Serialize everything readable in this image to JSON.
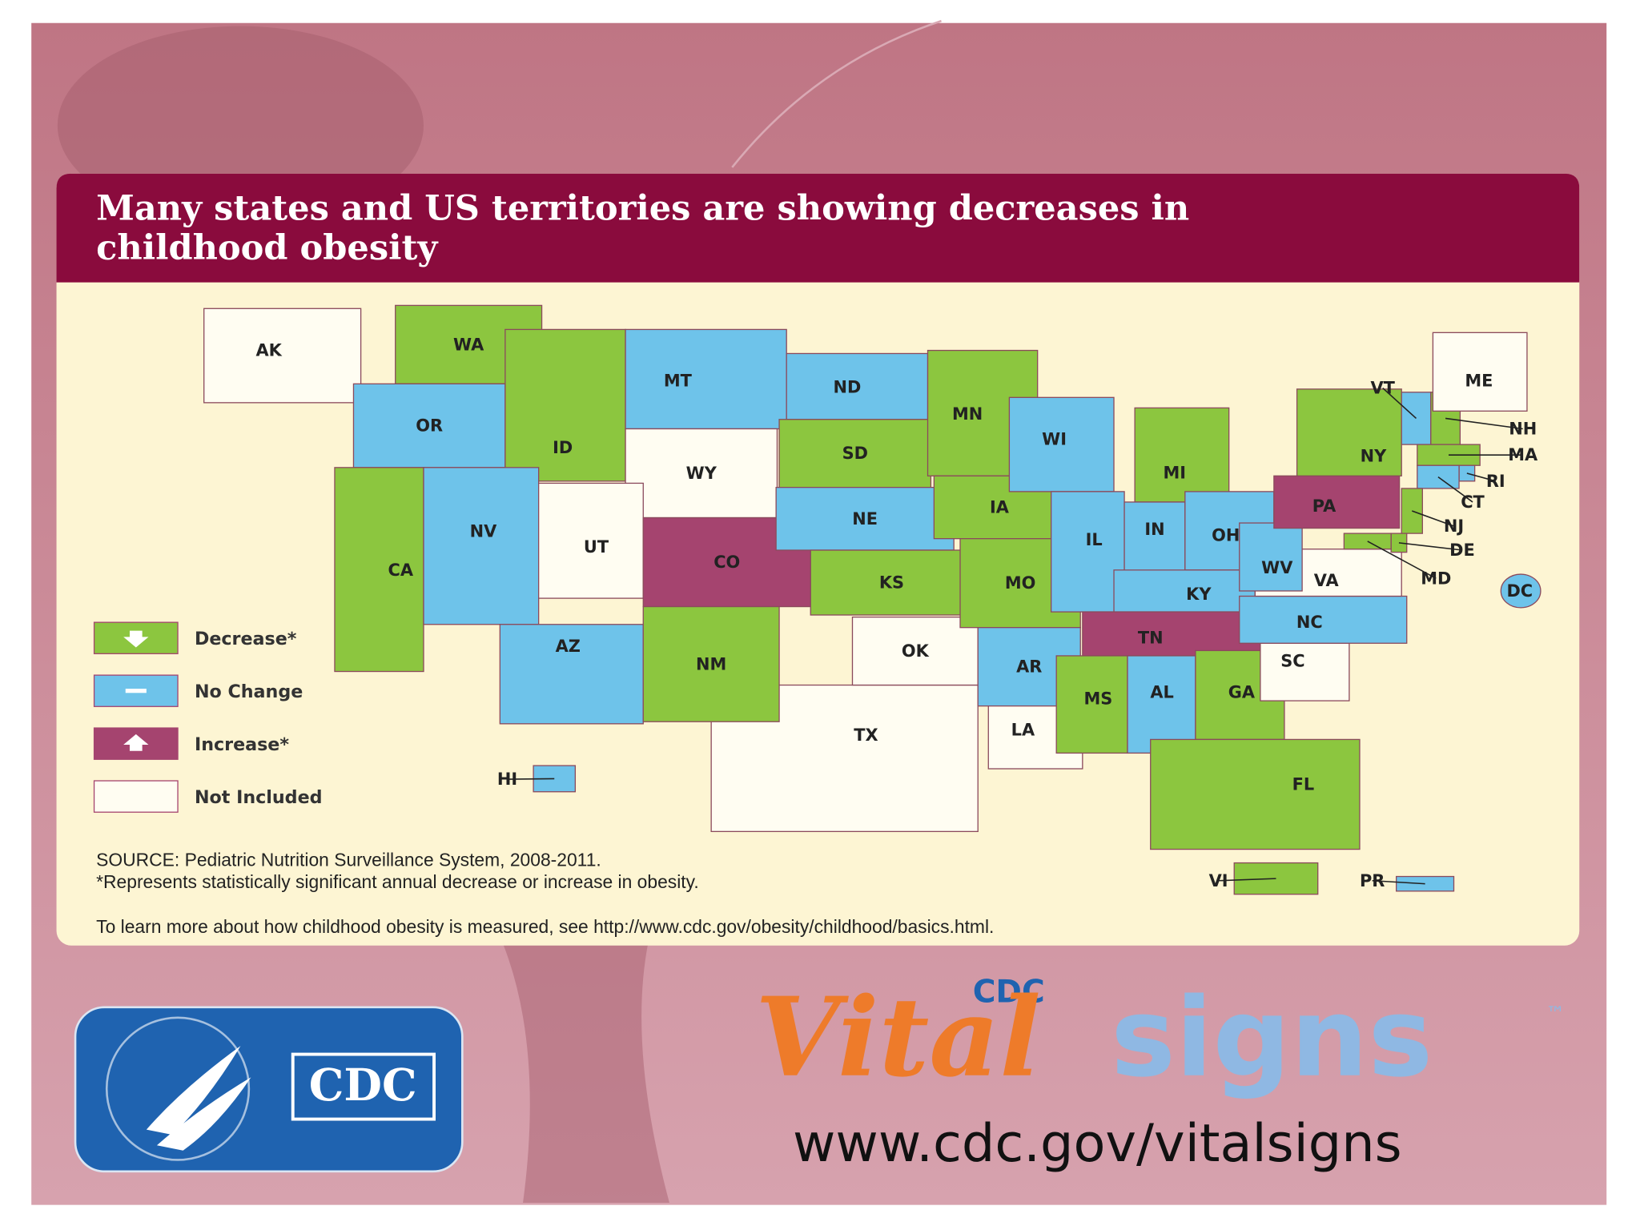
{
  "header": {
    "title_lines": [
      "Many states and US territories are showing decreases in",
      "childhood obesity"
    ]
  },
  "legend": [
    {
      "label": "Decrease*",
      "color": "#8cc63f"
    },
    {
      "label": "No Change",
      "color": "#6ec3ea"
    },
    {
      "label": "Increase*",
      "color": "#a5446f"
    },
    {
      "label": "Not Included",
      "color": "#fffdf2"
    }
  ],
  "states": [
    {
      "label": "AK",
      "color": "#fffdf2"
    },
    {
      "label": "WA",
      "color": "#8cc63f"
    },
    {
      "label": "OR",
      "color": "#6ec3ea"
    },
    {
      "label": "CA",
      "color": "#8cc63f"
    },
    {
      "label": "ID",
      "color": "#8cc63f"
    },
    {
      "label": "NV",
      "color": "#6ec3ea"
    },
    {
      "label": "MT",
      "color": "#6ec3ea"
    },
    {
      "label": "WY",
      "color": "#fffdf2"
    },
    {
      "label": "UT",
      "color": "#fffdf2"
    },
    {
      "label": "AZ",
      "color": "#6ec3ea"
    },
    {
      "label": "CO",
      "color": "#a5446f"
    },
    {
      "label": "TX",
      "color": "#fffdf2"
    },
    {
      "label": "NM",
      "color": "#8cc63f"
    },
    {
      "label": "ND",
      "color": "#6ec3ea"
    },
    {
      "label": "SD",
      "color": "#8cc63f"
    },
    {
      "label": "NE",
      "color": "#6ec3ea"
    },
    {
      "label": "KS",
      "color": "#8cc63f"
    },
    {
      "label": "OK",
      "color": "#fffdf2"
    },
    {
      "label": "MN",
      "color": "#8cc63f"
    },
    {
      "label": "IA",
      "color": "#8cc63f"
    },
    {
      "label": "MO",
      "color": "#8cc63f"
    },
    {
      "label": "AR",
      "color": "#6ec3ea"
    },
    {
      "label": "LA",
      "color": "#fffdf2"
    },
    {
      "label": "WI",
      "color": "#6ec3ea"
    },
    {
      "label": "IL",
      "color": "#6ec3ea"
    },
    {
      "label": "MI",
      "color": "#8cc63f"
    },
    {
      "label": "IN",
      "color": "#6ec3ea"
    },
    {
      "label": "OH",
      "color": "#6ec3ea"
    },
    {
      "label": "KY",
      "color": "#6ec3ea"
    },
    {
      "label": "TN",
      "color": "#a5446f"
    },
    {
      "label": "MS",
      "color": "#8cc63f"
    },
    {
      "label": "AL",
      "color": "#6ec3ea"
    },
    {
      "label": "GA",
      "color": "#8cc63f"
    },
    {
      "label": "FL",
      "color": "#8cc63f"
    },
    {
      "label": "SC",
      "color": "#fffdf2"
    },
    {
      "label": "NC",
      "color": "#6ec3ea"
    },
    {
      "label": "VA",
      "color": "#fffdf2"
    },
    {
      "label": "WV",
      "color": "#6ec3ea"
    },
    {
      "label": "PA",
      "color": "#a5446f"
    },
    {
      "label": "NY",
      "color": "#8cc63f"
    },
    {
      "label": "VT",
      "color": "#6ec3ea"
    },
    {
      "label": "NH",
      "color": "#8cc63f"
    },
    {
      "label": "ME",
      "color": "#fffdf2"
    },
    {
      "label": "MA",
      "color": "#8cc63f"
    },
    {
      "label": "RI",
      "color": "#6ec3ea"
    },
    {
      "label": "CT",
      "color": "#6ec3ea"
    },
    {
      "label": "NJ",
      "color": "#8cc63f"
    },
    {
      "label": "DE",
      "color": "#8cc63f"
    },
    {
      "label": "MD",
      "color": "#8cc63f"
    },
    {
      "label": "DC",
      "color": "#6ec3ea"
    },
    {
      "label": "HI",
      "color": "#6ec3ea"
    },
    {
      "label": "VI",
      "color": "#8cc63f"
    },
    {
      "label": "PR",
      "color": "#6ec3ea"
    }
  ],
  "source": "SOURCE: Pediatric Nutrition Surveillance System, 2008-2011.",
  "footnote": "*Represents statistically significant annual decrease or increase in obesity.",
  "more_info": "To learn more about how childhood obesity is measured, see http://www.cdc.gov/obesity/childhood/basics.html.",
  "logo": {
    "cdc": "CDC"
  },
  "brand": {
    "cdc": "CDC",
    "vital": "Vital",
    "signs": "signs",
    "tm": "™"
  },
  "url": "www.cdc.gov/vitalsigns"
}
